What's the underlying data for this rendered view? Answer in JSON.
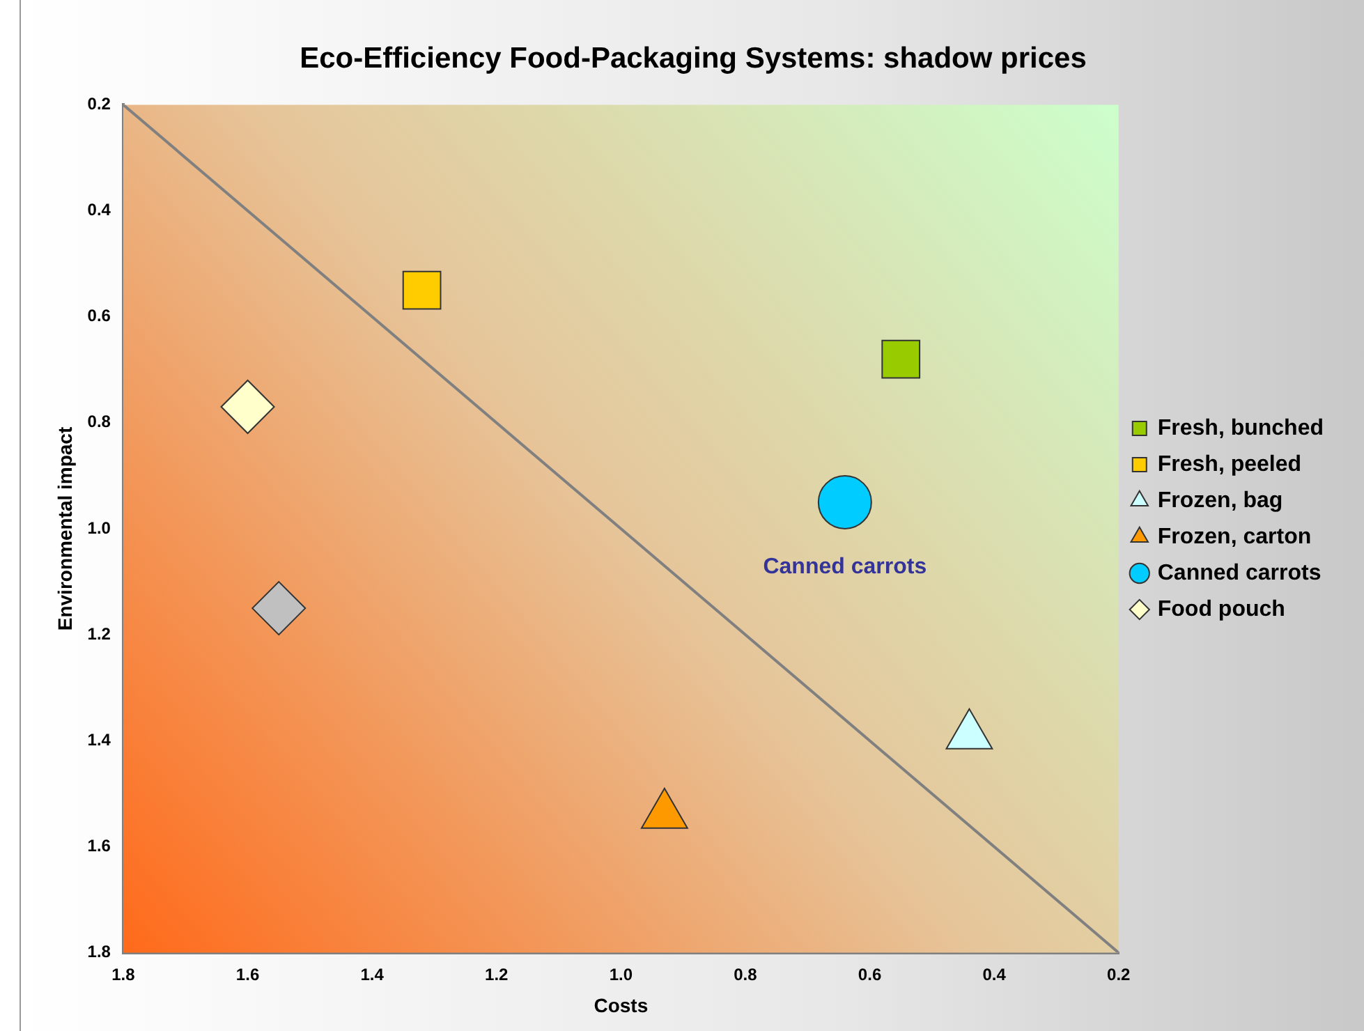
{
  "chart_data": {
    "type": "scatter",
    "title": "Eco-Efficiency Food-Packaging Systems: shadow prices",
    "xlabel": "Costs",
    "ylabel": "Environmental impact",
    "xlim": [
      1.8,
      0.2
    ],
    "ylim": [
      1.8,
      0.2
    ],
    "xticks": [
      1.8,
      1.6,
      1.4,
      1.2,
      {
        "value": 1,
        "label": "1.0"
      },
      0.8,
      0.6,
      0.4,
      0.2
    ],
    "yticks": [
      1.8,
      1.6,
      1.4,
      1.2,
      {
        "value": 1,
        "label": "1.0"
      },
      0.8,
      0.6,
      0.4,
      0.2
    ],
    "grid": false,
    "legend": "right",
    "series": [
      {
        "name": "Fresh, bunched",
        "color": "#99cc00",
        "marker": "square",
        "x": [
          0.55
        ],
        "values": [
          0.68
        ]
      },
      {
        "name": "Fresh, peeled",
        "color": "#ffcc00",
        "marker": "square",
        "x": [
          1.32
        ],
        "values": [
          0.55
        ]
      },
      {
        "name": "Frozen, bag",
        "color": "#ccffff",
        "marker": "triangle",
        "x": [
          0.44
        ],
        "values": [
          1.39
        ]
      },
      {
        "name": "Frozen, carton",
        "color": "#ff9900",
        "marker": "triangle",
        "x": [
          0.93
        ],
        "values": [
          1.54
        ]
      },
      {
        "name": "Canned carrots",
        "color": "#00ccff",
        "marker": "circle",
        "x": [
          0.64
        ],
        "values": [
          0.95
        ]
      },
      {
        "name": "Food pouch",
        "color": "#ffffcc",
        "marker": "diamond",
        "x": [
          1.6
        ],
        "values": [
          0.77
        ]
      },
      {
        "color": "#c0c0c0",
        "marker": "diamond",
        "x": [
          1.55
        ],
        "values": [
          1.15
        ]
      },
      {
        "type": "line",
        "color": "#808080",
        "marker": "none",
        "x": [
          1.8,
          0.2
        ],
        "values": [
          0.2,
          1.8
        ]
      }
    ],
    "annotations": [
      "Canned carrots"
    ]
  }
}
